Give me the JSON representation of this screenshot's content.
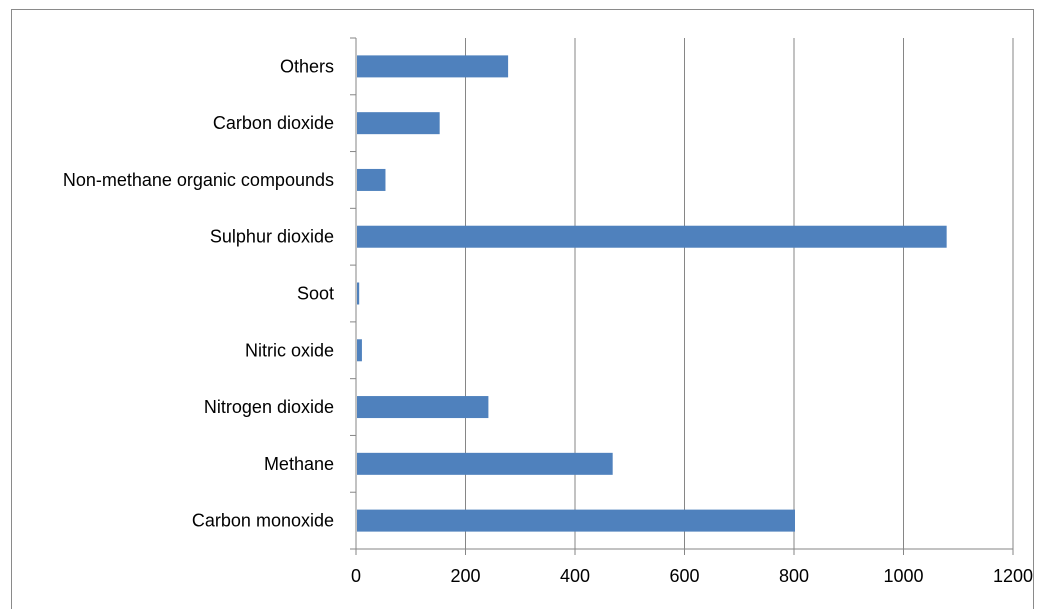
{
  "chart_data": {
    "type": "bar",
    "orientation": "horizontal",
    "title": "",
    "xlabel": "",
    "ylabel": "",
    "categories": [
      "Carbon monoxide",
      "Methane",
      "Nitrogen dioxide",
      "Nitric oxide",
      "Soot",
      "Sulphur dioxide",
      "Non-methane organic compounds",
      "Carbon dioxide",
      "Others"
    ],
    "values": [
      800,
      467,
      240,
      9,
      4,
      1077,
      52,
      151,
      276
    ],
    "xlim": [
      0,
      1200
    ],
    "xticks": [
      "0",
      "200",
      "400",
      "600",
      "800",
      "1000",
      "1200"
    ],
    "grid": "vertical major gridlines",
    "legend": "none",
    "bar_color": "#4f81bd"
  }
}
